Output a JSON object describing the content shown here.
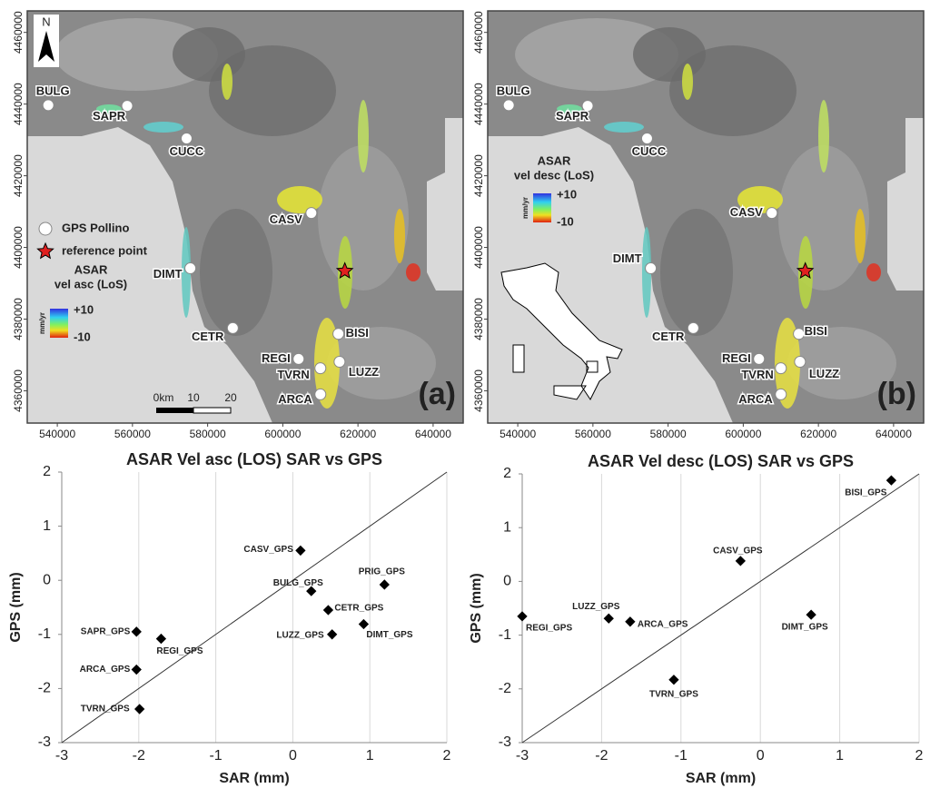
{
  "chart_data": [
    {
      "type": "map",
      "panel_label": "(a)",
      "north": "N",
      "xlim": [
        532000,
        648000
      ],
      "ylim": [
        4351000,
        4466000
      ],
      "xticks": [
        540000,
        560000,
        580000,
        600000,
        620000,
        640000
      ],
      "yticks": [
        4360000,
        4380000,
        4400000,
        4420000,
        4440000,
        4460000
      ],
      "stations": [
        {
          "name": "BULG",
          "x": 537600,
          "y": 4439700
        },
        {
          "name": "SAPR",
          "x": 558600,
          "y": 4439500
        },
        {
          "name": "CUCC",
          "x": 574400,
          "y": 4430400
        },
        {
          "name": "CASV",
          "x": 607600,
          "y": 4409600
        },
        {
          "name": "DIMT",
          "x": 575400,
          "y": 4394200
        },
        {
          "name": "CETR",
          "x": 586700,
          "y": 4377500
        },
        {
          "name": "BISI",
          "x": 614800,
          "y": 4375900
        },
        {
          "name": "REGI",
          "x": 604200,
          "y": 4368900
        },
        {
          "name": "TVRN",
          "x": 610000,
          "y": 4366300
        },
        {
          "name": "LUZZ",
          "x": 615100,
          "y": 4368100
        },
        {
          "name": "ARCA",
          "x": 610000,
          "y": 4359000
        }
      ],
      "reference_point": {
        "x": 616500,
        "y": 4393400
      },
      "legend": {
        "stations": "GPS Pollino",
        "reference": "reference point",
        "title": "ASAR",
        "subtitle": "vel asc (LoS)",
        "unit": "mm/yr",
        "max": "+10",
        "min": "-10"
      },
      "scale_bar": [
        "0km",
        "10",
        "20"
      ]
    },
    {
      "type": "map",
      "panel_label": "(b)",
      "xlim": [
        532000,
        648000
      ],
      "ylim": [
        4351000,
        4466000
      ],
      "xticks": [
        540000,
        560000,
        580000,
        600000,
        620000,
        640000
      ],
      "yticks": [
        4360000,
        4380000,
        4400000,
        4420000,
        4440000,
        4460000
      ],
      "stations": [
        {
          "name": "BULG",
          "x": 537600,
          "y": 4439700
        },
        {
          "name": "SAPR",
          "x": 558600,
          "y": 4439500
        },
        {
          "name": "CUCC",
          "x": 574400,
          "y": 4430400
        },
        {
          "name": "CASV",
          "x": 607600,
          "y": 4409600
        },
        {
          "name": "DIMT",
          "x": 575400,
          "y": 4394200
        },
        {
          "name": "CETR",
          "x": 586700,
          "y": 4377500
        },
        {
          "name": "BISI",
          "x": 614800,
          "y": 4375900
        },
        {
          "name": "REGI",
          "x": 604200,
          "y": 4368900
        },
        {
          "name": "TVRN",
          "x": 610000,
          "y": 4366300
        },
        {
          "name": "LUZZ",
          "x": 615100,
          "y": 4368100
        },
        {
          "name": "ARCA",
          "x": 610000,
          "y": 4359000
        }
      ],
      "reference_point": {
        "x": 616500,
        "y": 4393400
      },
      "legend": {
        "title": "ASAR",
        "subtitle": "vel desc (LoS)",
        "unit": "mm/yr",
        "max": "+10",
        "min": "-10"
      }
    },
    {
      "type": "scatter",
      "title": "ASAR Vel asc (LOS) SAR vs GPS",
      "x_label": "SAR (mm)",
      "y_label": "GPS (mm)",
      "xlim": [
        -3,
        2
      ],
      "ylim": [
        -3,
        2
      ],
      "xticks": [
        -3,
        -2,
        -1,
        0,
        1,
        2
      ],
      "yticks": [
        -3,
        -2,
        -1,
        0,
        1,
        2
      ],
      "grid": "x",
      "color": "#000000",
      "labels": [
        "CASV_GPS",
        "BULG_GPS",
        "PRIG_GPS",
        "CETR_GPS",
        "LUZZ_GPS",
        "DIMT_GPS",
        "SAPR_GPS",
        "REGI_GPS",
        "ARCA_GPS",
        "TVRN_GPS"
      ],
      "x": [
        0.1,
        0.24,
        1.19,
        0.46,
        0.51,
        0.92,
        -2.03,
        -1.71,
        -2.03,
        -1.99
      ],
      "y": [
        0.55,
        -0.2,
        -0.08,
        -0.55,
        -1.0,
        -0.81,
        -0.95,
        -1.08,
        -1.65,
        -2.38
      ]
    },
    {
      "type": "scatter",
      "title": "ASAR Vel desc (LOS) SAR vs GPS",
      "x_label": "SAR (mm)",
      "y_label": "GPS (mm)",
      "xlim": [
        -3,
        2
      ],
      "ylim": [
        -3,
        2
      ],
      "xticks": [
        -3,
        -2,
        -1,
        0,
        1,
        2
      ],
      "yticks": [
        -3,
        -2,
        -1,
        0,
        1,
        2
      ],
      "grid": "x",
      "color": "#000000",
      "labels": [
        "BISI_GPS",
        "CASV_GPS",
        "DIMT_GPS",
        "LUZZ_GPS",
        "ARCA_GPS",
        "REGI_GPS",
        "TVRN_GPS"
      ],
      "x": [
        1.65,
        -0.25,
        0.64,
        -1.91,
        -1.64,
        -3.0,
        -1.09
      ],
      "y": [
        1.88,
        0.38,
        -0.62,
        -0.69,
        -0.75,
        -0.65,
        -1.83
      ]
    }
  ]
}
